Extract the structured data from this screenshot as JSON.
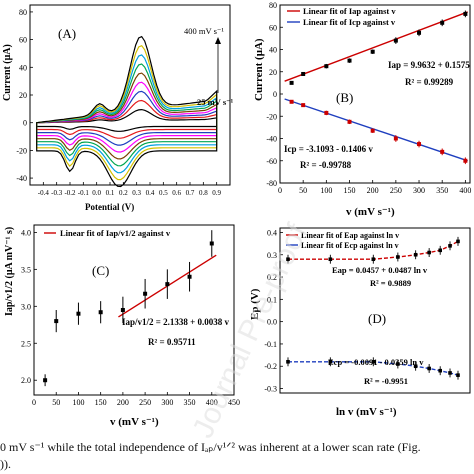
{
  "caption": {
    "line1": "0 mV s⁻¹ while the total independence of Iₐₚ/v¹ᐟ² was inherent at a lower scan rate (Fig.",
    "line2": "))."
  },
  "watermark_text": "Journal Pre-proof",
  "chart_data": [
    {
      "panel": "(A)",
      "type": "line",
      "xlabel": "Potential (V)",
      "ylabel": "Current (μA)",
      "xlim": [
        -0.5,
        1.0
      ],
      "ylim": [
        -45,
        85
      ],
      "xticks": [
        -0.4,
        -0.3,
        -0.2,
        -0.1,
        0.0,
        0.1,
        0.2,
        0.3,
        0.4,
        0.5,
        0.6,
        0.7,
        0.8,
        0.9
      ],
      "xticklabels": [
        "-0.4",
        "-0.3",
        "-0.2",
        "-0.1",
        "0.0",
        "0.1",
        "0.2",
        "0.3",
        "0.4",
        "0.5",
        "0.6",
        "0.7",
        "0.8",
        "0.9"
      ],
      "yticks": [
        -40,
        -20,
        0,
        20,
        40,
        60,
        80
      ],
      "yticklabels": [
        "-40",
        "-20",
        "0",
        "20",
        "40",
        "60",
        "80"
      ],
      "annotations": [
        "400 mV s⁻¹",
        "25 mV s⁻¹"
      ],
      "series": [
        {
          "scan_rate": 25,
          "color": "#000000",
          "ipa": 10,
          "ipc": -5
        },
        {
          "scan_rate": 50,
          "color": "#e41a1c",
          "ipa": 17,
          "ipc": -9
        },
        {
          "scan_rate": 100,
          "color": "#1f3fbf",
          "ipa": 24,
          "ipc": -13
        },
        {
          "scan_rate": 150,
          "color": "#ff00ff",
          "ipa": 31,
          "ipc": -17
        },
        {
          "scan_rate": 200,
          "color": "#7b3f00",
          "ipa": 38,
          "ipc": -21
        },
        {
          "scan_rate": 250,
          "color": "#00a651",
          "ipa": 45,
          "ipc": -25
        },
        {
          "scan_rate": 300,
          "color": "#00a0e0",
          "ipa": 52,
          "ipc": -29
        },
        {
          "scan_rate": 350,
          "color": "#d4c000",
          "ipa": 59,
          "ipc": -33
        },
        {
          "scan_rate": 400,
          "color": "#000000",
          "ipa": 66,
          "ipc": -37
        }
      ]
    },
    {
      "panel": "(B)",
      "type": "scatter",
      "xlabel": "v (mV s⁻¹)",
      "ylabel": "Current (μA)",
      "xlim": [
        0,
        410
      ],
      "ylim": [
        -80,
        80
      ],
      "xticks": [
        0,
        50,
        100,
        150,
        200,
        250,
        300,
        350,
        400
      ],
      "xticklabels": [
        "0",
        "50",
        "100",
        "150",
        "200",
        "250",
        "300",
        "350",
        "400"
      ],
      "yticks": [
        -80,
        -60,
        -40,
        -20,
        0,
        20,
        40,
        60,
        80
      ],
      "yticklabels": [
        "-80",
        "-60",
        "-40",
        "-20",
        "0",
        "20",
        "40",
        "60",
        "80"
      ],
      "legend": [
        "Linear fit of Iap against v",
        "Linear fit of Icp against v"
      ],
      "equations": [
        "Iap = 9.9632 + 0.1575",
        "R² = 0.99289",
        "Icp = -3.1093 - 0.1406 v",
        "R² = -0.99788"
      ],
      "x": [
        25,
        50,
        100,
        150,
        200,
        250,
        300,
        350,
        400
      ],
      "series": [
        {
          "name": "Iap",
          "values": [
            10,
            18,
            25,
            30,
            38,
            48,
            55,
            64,
            72
          ],
          "err": [
            1,
            1,
            2,
            2,
            2,
            3,
            3,
            3,
            3
          ],
          "fit": [
            9.9632,
            0.1575
          ],
          "color": "#cc0000"
        },
        {
          "name": "Icp",
          "values": [
            -7,
            -10,
            -17,
            -25,
            -33,
            -40,
            -45,
            -52,
            -60
          ],
          "err": [
            1,
            1,
            2,
            2,
            2,
            3,
            3,
            3,
            3
          ],
          "fit": [
            -3.1093,
            -0.1406
          ],
          "color": "#1f3fbf"
        }
      ]
    },
    {
      "panel": "(C)",
      "type": "scatter",
      "xlabel": "v (mV s⁻¹)",
      "ylabel": "Iap/v1/2 (μA mV⁻¹ s)",
      "xlim": [
        0,
        450
      ],
      "ylim": [
        1.8,
        4.1
      ],
      "xticks": [
        0,
        50,
        100,
        150,
        200,
        250,
        300,
        350,
        400,
        450
      ],
      "xticklabels": [
        "0",
        "50",
        "100",
        "150",
        "200",
        "250",
        "300",
        "350",
        "400",
        "450"
      ],
      "yticks": [
        2.0,
        2.5,
        3.0,
        3.5,
        4.0
      ],
      "yticklabels": [
        "2.0",
        "2.5",
        "3.0",
        "3.5",
        "4.0"
      ],
      "legend": [
        "Linear fit of Iap/v1/2 against v"
      ],
      "equations": [
        "Iap/v1/2 = 2.1338 + 0.0038 v",
        "R² = 0.95711"
      ],
      "x": [
        25,
        50,
        100,
        150,
        200,
        250,
        300,
        350,
        400
      ],
      "values": [
        2.0,
        2.8,
        2.9,
        2.92,
        2.95,
        3.17,
        3.3,
        3.4,
        3.85
      ],
      "err": [
        0.08,
        0.15,
        0.15,
        0.15,
        0.18,
        0.2,
        0.2,
        0.2,
        0.18
      ],
      "fit": [
        2.1338,
        0.0038
      ],
      "fit_range": [
        190,
        410
      ]
    },
    {
      "panel": "(D)",
      "type": "scatter",
      "xlabel": "ln v (mV s⁻¹)",
      "ylabel": "Ep (V)",
      "xlim": [
        0,
        8
      ],
      "ylim": [
        -0.32,
        0.42
      ],
      "yticks": [
        -0.3,
        -0.2,
        -0.1,
        0.0,
        0.1,
        0.2,
        0.3,
        0.4
      ],
      "yticklabels": [
        "-0.3",
        "-0.2",
        "-0.1",
        "0.0",
        "0.1",
        "0.2",
        "0.3",
        "0.4"
      ],
      "legend": [
        "Linear fit of Eap against ln v",
        "Linear fit of Ecp against ln v"
      ],
      "equations": [
        "Eap = 0.0457 + 0.0487 ln v",
        "R² = 0.9889",
        "Ecp = -0.0091 - 0.0359 ln v",
        "R² = -0.9951"
      ],
      "series": [
        {
          "name": "Eap",
          "values": [
            0.28,
            0.28,
            0.28,
            0.29,
            0.3,
            0.31,
            0.32,
            0.34,
            0.36
          ],
          "color": "#cc0000"
        },
        {
          "name": "Ecp",
          "values": [
            -0.18,
            -0.18,
            -0.18,
            -0.19,
            -0.2,
            -0.21,
            -0.22,
            -0.23,
            -0.24
          ],
          "color": "#1f3fbf"
        }
      ],
      "err": [
        0.02,
        0.02,
        0.02,
        0.02,
        0.02,
        0.02,
        0.02,
        0.02,
        0.02
      ]
    }
  ]
}
